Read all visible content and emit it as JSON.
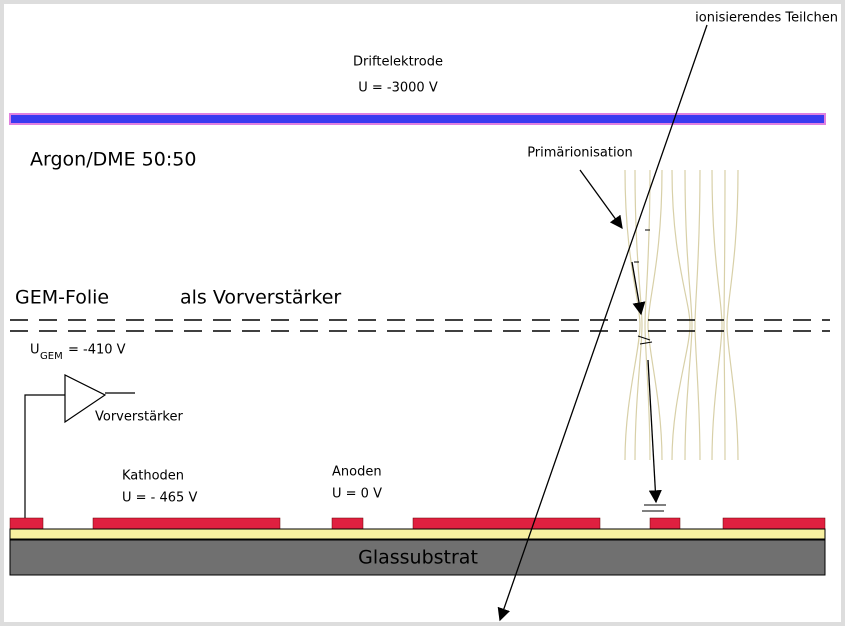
{
  "labels": {
    "particle": "ionisierendes Teilchen",
    "drift_electrode": "Driftelektrode",
    "drift_voltage": "U = -3000 V",
    "gas": "Argon/DME 50:50",
    "primary_ionisation": "Primärionisation",
    "gem_foil": "GEM-Folie",
    "gem_role": "als Vorverstärker",
    "gem_voltage_symbol": "U",
    "gem_voltage_subscript": "GEM",
    "gem_voltage_value": "= -410 V",
    "preamplifier": "Vorverstärker",
    "cathodes": "Kathoden",
    "cathode_voltage": "U = - 465 V",
    "anodes": "Anoden",
    "anode_voltage": "U = 0 V",
    "substrate": "Glassubstrat"
  }
}
